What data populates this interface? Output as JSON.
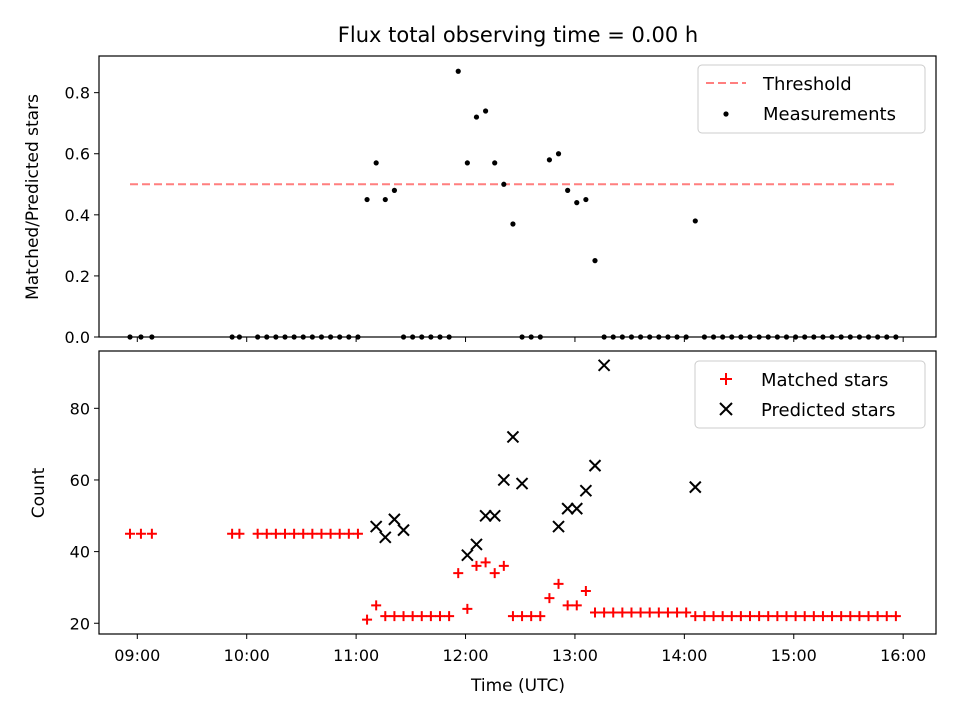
{
  "figure": {
    "title": "Flux total observing time = 0.00 h"
  },
  "chart_data": [
    {
      "type": "scatter",
      "title": "Flux total observing time = 0.00 h",
      "xlabel": "",
      "ylabel": "Matched/Predicted stars",
      "xlim": [
        "08:39",
        "16:18"
      ],
      "ylim": [
        0,
        0.92
      ],
      "yticks": [
        0.0,
        0.2,
        0.4,
        0.6,
        0.8
      ],
      "ytick_labels": [
        "0.0",
        "0.2",
        "0.4",
        "0.6",
        "0.8"
      ],
      "grid": false,
      "legend_position": "top-right",
      "series": [
        {
          "name": "Threshold",
          "kind": "line",
          "style": "dashed",
          "color": "#ff7f7f",
          "x": [
            "08:56",
            "15:56"
          ],
          "y": [
            0.5,
            0.5
          ]
        },
        {
          "name": "Measurements",
          "kind": "scatter",
          "marker": "dot",
          "color": "#000000",
          "x": [
            "08:56",
            "09:02",
            "09:08",
            "09:52",
            "09:56",
            "10:06",
            "10:11",
            "10:16",
            "10:21",
            "10:26",
            "10:31",
            "10:36",
            "10:41",
            "10:46",
            "10:51",
            "10:56",
            "11:01",
            "11:06",
            "11:11",
            "11:16",
            "11:21",
            "11:26",
            "11:31",
            "11:36",
            "11:41",
            "11:46",
            "11:51",
            "11:56",
            "12:01",
            "12:06",
            "12:11",
            "12:16",
            "12:21",
            "12:26",
            "12:31",
            "12:36",
            "12:41",
            "12:46",
            "12:51",
            "12:56",
            "13:01",
            "13:06",
            "13:11",
            "13:16",
            "13:21",
            "13:26",
            "13:31",
            "13:36",
            "13:41",
            "13:46",
            "13:51",
            "13:56",
            "14:01",
            "14:06",
            "14:11",
            "14:16",
            "14:21",
            "14:26",
            "14:31",
            "14:36",
            "14:41",
            "14:46",
            "14:51",
            "14:56",
            "15:01",
            "15:06",
            "15:11",
            "15:16",
            "15:21",
            "15:26",
            "15:31",
            "15:36",
            "15:41",
            "15:46",
            "15:51",
            "15:56"
          ],
          "y": [
            0,
            0,
            0,
            0,
            0,
            0,
            0,
            0,
            0,
            0,
            0,
            0,
            0,
            0,
            0,
            0,
            0,
            0.45,
            0.57,
            0.45,
            0.48,
            0,
            0,
            0,
            0,
            0,
            0,
            0.87,
            0.57,
            0.72,
            0.74,
            0.57,
            0.5,
            0.37,
            0,
            0,
            0,
            0.58,
            0.6,
            0.48,
            0.44,
            0.45,
            0.25,
            0,
            0,
            0,
            0,
            0,
            0,
            0,
            0,
            0,
            0,
            0.38,
            0,
            0,
            0,
            0,
            0,
            0,
            0,
            0,
            0,
            0,
            0,
            0,
            0,
            0,
            0,
            0,
            0,
            0,
            0,
            0,
            0,
            0
          ]
        }
      ]
    },
    {
      "type": "scatter",
      "title": "",
      "xlabel": "Time (UTC)",
      "ylabel": "Count",
      "xlim": [
        "08:39",
        "16:18"
      ],
      "ylim": [
        17,
        96
      ],
      "yticks": [
        20,
        40,
        60,
        80
      ],
      "ytick_labels": [
        "20",
        "40",
        "60",
        "80"
      ],
      "xticks": [
        "09:00",
        "10:00",
        "11:00",
        "12:00",
        "13:00",
        "14:00",
        "15:00",
        "16:00"
      ],
      "xtick_labels": [
        "09:00",
        "10:00",
        "11:00",
        "12:00",
        "13:00",
        "14:00",
        "15:00",
        "16:00"
      ],
      "grid": false,
      "legend_position": "top-right",
      "series": [
        {
          "name": "Matched stars",
          "kind": "scatter",
          "marker": "plus",
          "color": "#ff0000",
          "x": [
            "08:56",
            "09:02",
            "09:08",
            "09:52",
            "09:56",
            "10:06",
            "10:11",
            "10:16",
            "10:21",
            "10:26",
            "10:31",
            "10:36",
            "10:41",
            "10:46",
            "10:51",
            "10:56",
            "11:01",
            "11:06",
            "11:11",
            "11:16",
            "11:21",
            "11:26",
            "11:31",
            "11:36",
            "11:41",
            "11:46",
            "11:51",
            "11:56",
            "12:01",
            "12:06",
            "12:11",
            "12:16",
            "12:21",
            "12:26",
            "12:31",
            "12:36",
            "12:41",
            "12:46",
            "12:51",
            "12:56",
            "13:01",
            "13:06",
            "13:11",
            "13:16",
            "13:21",
            "13:26",
            "13:31",
            "13:36",
            "13:41",
            "13:46",
            "13:51",
            "13:56",
            "14:01",
            "14:06",
            "14:11",
            "14:16",
            "14:21",
            "14:26",
            "14:31",
            "14:36",
            "14:41",
            "14:46",
            "14:51",
            "14:56",
            "15:01",
            "15:06",
            "15:11",
            "15:16",
            "15:21",
            "15:26",
            "15:31",
            "15:36",
            "15:41",
            "15:46",
            "15:51",
            "15:56"
          ],
          "y": [
            45,
            45,
            45,
            45,
            45,
            45,
            45,
            45,
            45,
            45,
            45,
            45,
            45,
            45,
            45,
            45,
            45,
            21,
            25,
            22,
            22,
            22,
            22,
            22,
            22,
            22,
            22,
            34,
            24,
            36,
            37,
            34,
            36,
            22,
            22,
            22,
            22,
            27,
            31,
            25,
            25,
            29,
            23,
            23,
            23,
            23,
            23,
            23,
            23,
            23,
            23,
            23,
            23,
            22,
            22,
            22,
            22,
            22,
            22,
            22,
            22,
            22,
            22,
            22,
            22,
            22,
            22,
            22,
            22,
            22,
            22,
            22,
            22,
            22,
            22,
            22
          ]
        },
        {
          "name": "Predicted stars",
          "kind": "scatter",
          "marker": "x",
          "color": "#000000",
          "x": [
            "11:11",
            "11:16",
            "11:21",
            "11:26",
            "12:01",
            "12:06",
            "12:11",
            "12:16",
            "12:21",
            "12:26",
            "12:31",
            "12:51",
            "12:56",
            "13:01",
            "13:06",
            "13:11",
            "13:16",
            "14:06"
          ],
          "y": [
            47,
            44,
            49,
            46,
            39,
            42,
            50,
            50,
            60,
            72,
            59,
            47,
            52,
            52,
            57,
            64,
            92,
            58
          ]
        }
      ]
    }
  ]
}
